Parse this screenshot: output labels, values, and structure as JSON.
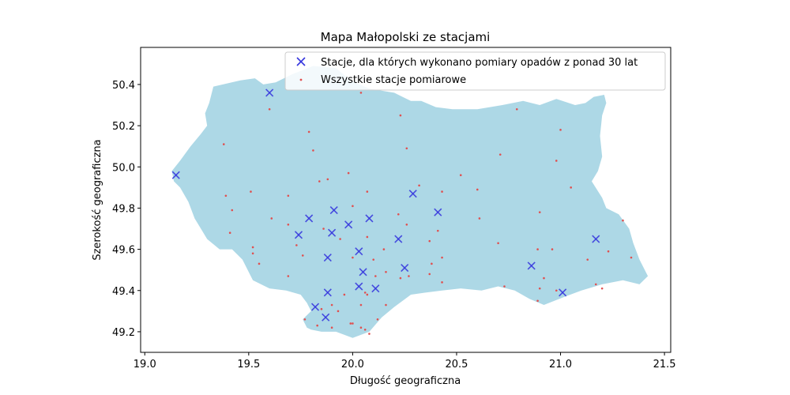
{
  "chart_data": {
    "type": "scatter",
    "title": "Mapa Małopolski ze stacjami",
    "xlabel": "Długość geograficzna",
    "ylabel": "Szerokość geograficzna",
    "xlim": [
      18.98,
      21.53
    ],
    "ylim": [
      49.1,
      50.58
    ],
    "xticks": [
      19.0,
      19.5,
      20.0,
      20.5,
      21.0,
      21.5
    ],
    "xtick_labels": [
      "19.0",
      "19.5",
      "20.0",
      "20.5",
      "21.0",
      "21.5"
    ],
    "yticks": [
      49.2,
      49.4,
      49.6,
      49.8,
      50.0,
      50.2,
      50.4
    ],
    "ytick_labels": [
      "49.2",
      "49.4",
      "49.6",
      "49.8",
      "50.0",
      "50.2",
      "50.4"
    ],
    "grid": false,
    "legend_position": "top-right",
    "region": {
      "fill": "#add8e6",
      "outline": [
        [
          19.33,
          50.39
        ],
        [
          19.46,
          50.42
        ],
        [
          19.53,
          50.43
        ],
        [
          19.57,
          50.4
        ],
        [
          19.63,
          50.41
        ],
        [
          19.71,
          50.45
        ],
        [
          19.81,
          50.49
        ],
        [
          19.92,
          50.48
        ],
        [
          19.99,
          50.42
        ],
        [
          20.08,
          50.38
        ],
        [
          20.2,
          50.36
        ],
        [
          20.28,
          50.32
        ],
        [
          20.33,
          50.32
        ],
        [
          20.4,
          50.29
        ],
        [
          20.48,
          50.28
        ],
        [
          20.6,
          50.28
        ],
        [
          20.72,
          50.3
        ],
        [
          20.82,
          50.32
        ],
        [
          20.9,
          50.3
        ],
        [
          20.98,
          50.33
        ],
        [
          21.07,
          50.3
        ],
        [
          21.12,
          50.31
        ],
        [
          21.16,
          50.34
        ],
        [
          21.21,
          50.35
        ],
        [
          21.22,
          50.31
        ],
        [
          21.2,
          50.25
        ],
        [
          21.19,
          50.15
        ],
        [
          21.2,
          50.05
        ],
        [
          21.18,
          49.98
        ],
        [
          21.15,
          49.93
        ],
        [
          21.2,
          49.85
        ],
        [
          21.22,
          49.8
        ],
        [
          21.28,
          49.77
        ],
        [
          21.33,
          49.7
        ],
        [
          21.35,
          49.63
        ],
        [
          21.38,
          49.55
        ],
        [
          21.42,
          49.47
        ],
        [
          21.38,
          49.43
        ],
        [
          21.3,
          49.45
        ],
        [
          21.2,
          49.43
        ],
        [
          21.1,
          49.4
        ],
        [
          21.02,
          49.37
        ],
        [
          20.92,
          49.33
        ],
        [
          20.85,
          49.36
        ],
        [
          20.78,
          49.4
        ],
        [
          20.7,
          49.42
        ],
        [
          20.62,
          49.4
        ],
        [
          20.52,
          49.41
        ],
        [
          20.43,
          49.4
        ],
        [
          20.35,
          49.39
        ],
        [
          20.28,
          49.38
        ],
        [
          20.2,
          49.32
        ],
        [
          20.14,
          49.27
        ],
        [
          20.08,
          49.2
        ],
        [
          20.0,
          49.17
        ],
        [
          19.92,
          49.2
        ],
        [
          19.85,
          49.2
        ],
        [
          19.8,
          49.21
        ],
        [
          19.78,
          49.22
        ],
        [
          19.76,
          49.26
        ],
        [
          19.8,
          49.3
        ],
        [
          19.78,
          49.34
        ],
        [
          19.75,
          49.38
        ],
        [
          19.68,
          49.4
        ],
        [
          19.6,
          49.41
        ],
        [
          19.52,
          49.45
        ],
        [
          19.47,
          49.55
        ],
        [
          19.42,
          49.6
        ],
        [
          19.36,
          49.6
        ],
        [
          19.3,
          49.65
        ],
        [
          19.27,
          49.7
        ],
        [
          19.24,
          49.75
        ],
        [
          19.21,
          49.83
        ],
        [
          19.17,
          49.9
        ],
        [
          19.14,
          49.93
        ],
        [
          19.13,
          49.98
        ],
        [
          19.17,
          50.03
        ],
        [
          19.22,
          50.1
        ],
        [
          19.27,
          50.16
        ],
        [
          19.3,
          50.2
        ],
        [
          19.29,
          50.26
        ],
        [
          19.31,
          50.31
        ],
        [
          19.33,
          50.39
        ]
      ]
    },
    "series": [
      {
        "name": "Stacje, dla których wykonano pomiary opadów z ponad 30 lat",
        "marker": "x",
        "color": "#3333dd",
        "points": [
          [
            19.6,
            50.36
          ],
          [
            19.15,
            49.96
          ],
          [
            20.29,
            49.87
          ],
          [
            20.41,
            49.78
          ],
          [
            19.91,
            49.79
          ],
          [
            19.79,
            49.75
          ],
          [
            20.08,
            49.75
          ],
          [
            19.98,
            49.72
          ],
          [
            19.74,
            49.67
          ],
          [
            19.9,
            49.68
          ],
          [
            20.22,
            49.65
          ],
          [
            21.17,
            49.65
          ],
          [
            20.03,
            49.59
          ],
          [
            19.88,
            49.56
          ],
          [
            20.86,
            49.52
          ],
          [
            20.05,
            49.49
          ],
          [
            20.25,
            49.51
          ],
          [
            20.03,
            49.42
          ],
          [
            20.11,
            49.41
          ],
          [
            19.88,
            49.39
          ],
          [
            21.01,
            49.39
          ],
          [
            19.82,
            49.32
          ],
          [
            19.87,
            49.27
          ]
        ]
      },
      {
        "name": "Wszystkie stacje pomiarowe",
        "marker": "dot",
        "color": "#e05050",
        "points": [
          [
            20.04,
            50.36
          ],
          [
            19.6,
            50.28
          ],
          [
            20.23,
            50.25
          ],
          [
            19.79,
            50.17
          ],
          [
            21.0,
            50.18
          ],
          [
            20.79,
            50.28
          ],
          [
            19.38,
            50.11
          ],
          [
            19.81,
            50.08
          ],
          [
            20.26,
            50.09
          ],
          [
            20.71,
            50.06
          ],
          [
            20.98,
            50.03
          ],
          [
            19.98,
            49.97
          ],
          [
            20.52,
            49.96
          ],
          [
            19.88,
            49.94
          ],
          [
            19.84,
            49.93
          ],
          [
            20.32,
            49.91
          ],
          [
            21.05,
            49.9
          ],
          [
            20.07,
            49.88
          ],
          [
            20.43,
            49.88
          ],
          [
            20.6,
            49.89
          ],
          [
            19.39,
            49.86
          ],
          [
            19.51,
            49.88
          ],
          [
            19.69,
            49.86
          ],
          [
            20.0,
            49.81
          ],
          [
            19.42,
            49.79
          ],
          [
            20.9,
            49.78
          ],
          [
            19.61,
            49.75
          ],
          [
            20.22,
            49.77
          ],
          [
            20.61,
            49.75
          ],
          [
            21.3,
            49.74
          ],
          [
            19.69,
            49.72
          ],
          [
            20.26,
            49.72
          ],
          [
            19.86,
            49.7
          ],
          [
            20.41,
            49.69
          ],
          [
            19.41,
            49.68
          ],
          [
            20.07,
            49.66
          ],
          [
            19.94,
            49.65
          ],
          [
            20.37,
            49.64
          ],
          [
            20.7,
            49.63
          ],
          [
            20.89,
            49.6
          ],
          [
            20.96,
            49.6
          ],
          [
            19.52,
            49.61
          ],
          [
            19.73,
            49.62
          ],
          [
            20.15,
            49.6
          ],
          [
            21.23,
            49.59
          ],
          [
            19.52,
            49.58
          ],
          [
            19.76,
            49.57
          ],
          [
            20.0,
            49.56
          ],
          [
            20.1,
            49.55
          ],
          [
            20.43,
            49.56
          ],
          [
            21.13,
            49.55
          ],
          [
            21.34,
            49.56
          ],
          [
            19.55,
            49.53
          ],
          [
            20.38,
            49.53
          ],
          [
            20.16,
            49.49
          ],
          [
            20.27,
            49.47
          ],
          [
            20.37,
            49.48
          ],
          [
            19.69,
            49.47
          ],
          [
            20.11,
            49.47
          ],
          [
            20.92,
            49.46
          ],
          [
            20.23,
            49.46
          ],
          [
            20.43,
            49.44
          ],
          [
            21.17,
            49.43
          ],
          [
            20.73,
            49.42
          ],
          [
            20.9,
            49.41
          ],
          [
            20.98,
            49.4
          ],
          [
            21.2,
            49.41
          ],
          [
            19.96,
            49.38
          ],
          [
            20.06,
            49.39
          ],
          [
            20.07,
            49.38
          ],
          [
            19.9,
            49.33
          ],
          [
            20.04,
            49.33
          ],
          [
            20.16,
            49.33
          ],
          [
            19.85,
            49.31
          ],
          [
            19.93,
            49.3
          ],
          [
            20.89,
            49.35
          ],
          [
            19.77,
            49.26
          ],
          [
            20.12,
            49.26
          ],
          [
            19.83,
            49.23
          ],
          [
            19.99,
            49.24
          ],
          [
            20.0,
            49.24
          ],
          [
            20.04,
            49.22
          ],
          [
            20.06,
            49.21
          ],
          [
            20.08,
            49.19
          ],
          [
            19.9,
            49.22
          ]
        ]
      }
    ]
  }
}
